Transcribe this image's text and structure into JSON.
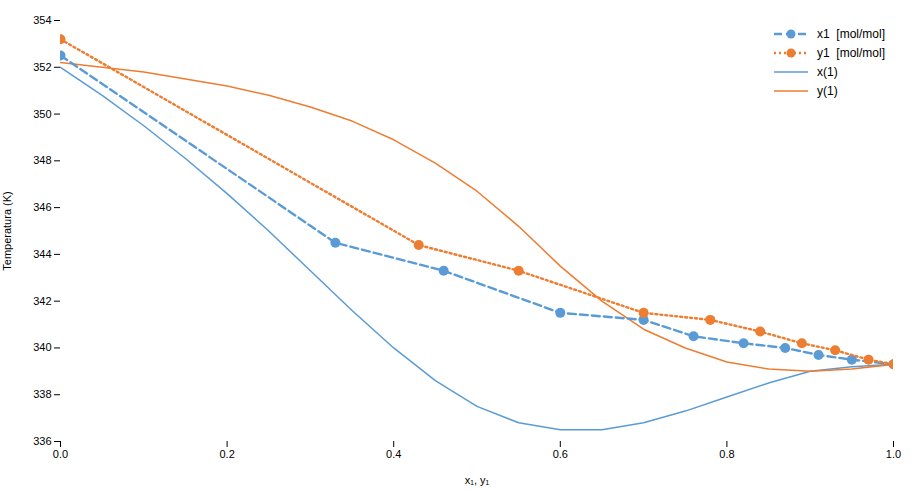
{
  "chart_data": {
    "type": "line",
    "xlabel": "x₁, y₁",
    "ylabel": "Temperatura (K)",
    "xlim": [
      0.0,
      1.0
    ],
    "ylim": [
      336,
      354
    ],
    "xticks": [
      {
        "value": 0.0,
        "label": "0.0"
      },
      {
        "value": 0.2,
        "label": "0.2"
      },
      {
        "value": 0.4,
        "label": "0.4"
      },
      {
        "value": 0.6,
        "label": "0.6"
      },
      {
        "value": 0.8,
        "label": "0.8"
      },
      {
        "value": 1.0,
        "label": "1.0"
      }
    ],
    "yticks": [
      336,
      338,
      340,
      342,
      344,
      346,
      348,
      350,
      352,
      354
    ],
    "legend": "upper right",
    "series": [
      {
        "name": "x1  [mol/mol]",
        "color": "#5B9BD5",
        "line_style": "dashed",
        "marker": "circle",
        "x": [
          0.0,
          0.33,
          0.46,
          0.6,
          0.7,
          0.76,
          0.82,
          0.87,
          0.91,
          0.95,
          1.0
        ],
        "values": [
          352.5,
          344.5,
          343.3,
          341.5,
          341.2,
          340.5,
          340.2,
          340.0,
          339.7,
          339.5,
          339.3
        ]
      },
      {
        "name": "y1  [mol/mol]",
        "color": "#ED7D31",
        "line_style": "dotted",
        "marker": "circle",
        "x": [
          0.0,
          0.43,
          0.55,
          0.7,
          0.78,
          0.84,
          0.89,
          0.93,
          0.97,
          1.0
        ],
        "values": [
          353.2,
          344.4,
          343.3,
          341.5,
          341.2,
          340.7,
          340.2,
          339.9,
          339.5,
          339.3
        ]
      },
      {
        "name": "x(1)",
        "color": "#5B9BD5",
        "line_style": "solid",
        "x": [
          0.0,
          0.05,
          0.1,
          0.15,
          0.2,
          0.25,
          0.3,
          0.35,
          0.4,
          0.45,
          0.5,
          0.55,
          0.6,
          0.65,
          0.7,
          0.75,
          0.8,
          0.85,
          0.9,
          0.95,
          1.0
        ],
        "values": [
          352.0,
          350.8,
          349.5,
          348.1,
          346.6,
          345.0,
          343.3,
          341.6,
          340.0,
          338.6,
          337.5,
          336.8,
          336.5,
          336.5,
          336.8,
          337.3,
          337.9,
          338.5,
          339.0,
          339.2,
          339.3
        ]
      },
      {
        "name": "y(1)",
        "color": "#ED7D31",
        "line_style": "solid",
        "x": [
          0.0,
          0.05,
          0.1,
          0.15,
          0.2,
          0.25,
          0.3,
          0.35,
          0.4,
          0.45,
          0.5,
          0.55,
          0.6,
          0.65,
          0.7,
          0.75,
          0.8,
          0.85,
          0.9,
          0.95,
          1.0
        ],
        "values": [
          352.2,
          352.0,
          351.8,
          351.5,
          351.2,
          350.8,
          350.3,
          349.7,
          348.9,
          347.9,
          346.7,
          345.2,
          343.5,
          342.0,
          340.8,
          340.0,
          339.4,
          339.1,
          339.0,
          339.1,
          339.3
        ]
      }
    ]
  }
}
